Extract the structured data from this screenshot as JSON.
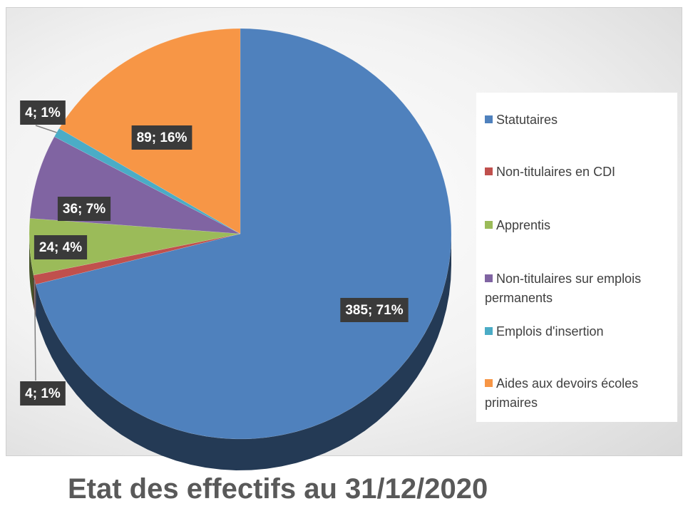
{
  "chart_data": {
    "type": "pie",
    "title": "Etat des effectifs au 31/12/2020",
    "categories": [
      "Statutaires",
      "Non-titulaires en CDI",
      "Apprentis",
      "Non-titulaires sur emplois permanents",
      "Emplois d'insertion",
      "Aides aux devoirs écoles primaires"
    ],
    "values": [
      385,
      4,
      24,
      36,
      4,
      89
    ],
    "value_labels": [
      "385; 71%",
      "4; 1%",
      "24; 4%",
      "36; 7%",
      "4; 1%",
      "89; 16%"
    ],
    "colors": [
      "#4f81bd",
      "#c0504d",
      "#9bbb59",
      "#8064a2",
      "#4bacc6",
      "#f79646"
    ],
    "legend": "right"
  }
}
